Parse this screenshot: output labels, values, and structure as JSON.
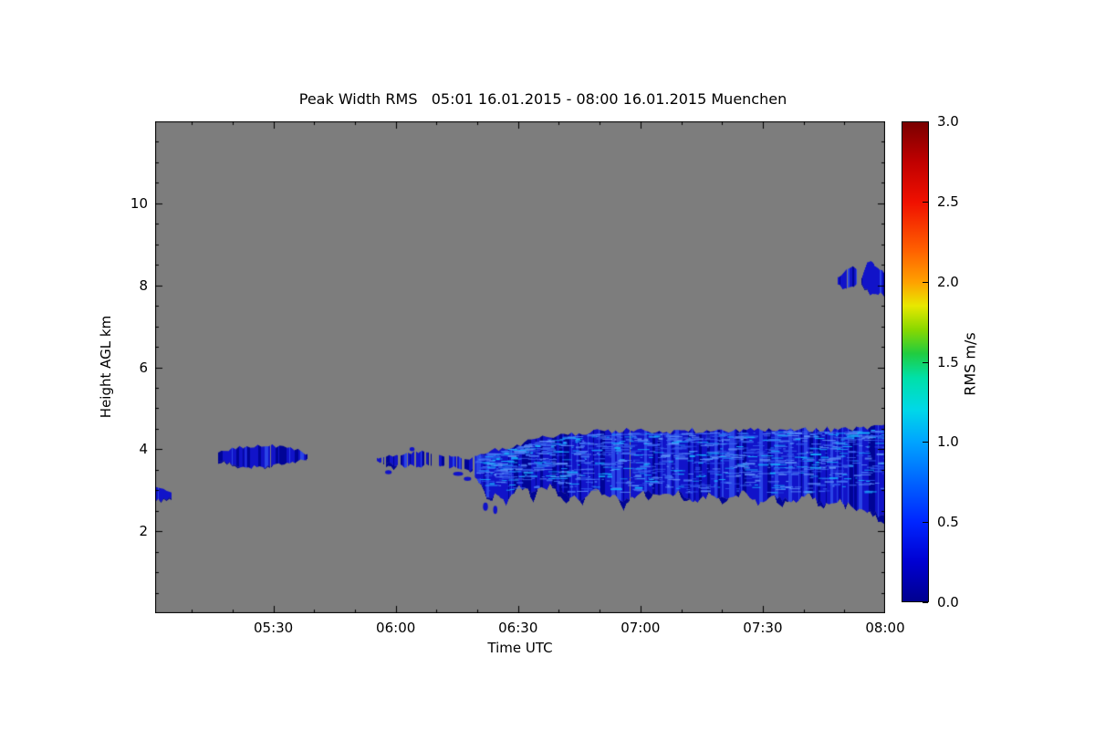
{
  "chart_data": {
    "type": "heatmap",
    "title": "Peak Width RMS   05:01 16.01.2015 - 08:00 16.01.2015 Muenchen",
    "xlabel": "Time UTC",
    "ylabel": "Height AGL km",
    "t_max_minutes": 179,
    "h_max_km": 12,
    "x_ticks": [
      {
        "t": 29,
        "label": "05:30"
      },
      {
        "t": 59,
        "label": "06:00"
      },
      {
        "t": 89,
        "label": "06:30"
      },
      {
        "t": 119,
        "label": "07:00"
      },
      {
        "t": 149,
        "label": "07:30"
      },
      {
        "t": 179,
        "label": "08:00"
      }
    ],
    "x_minor_ticks": [
      9,
      19,
      39,
      49,
      69,
      79,
      99,
      109,
      129,
      139,
      159,
      169
    ],
    "y_ticks": [
      {
        "km": 2,
        "label": "2"
      },
      {
        "km": 4,
        "label": "4"
      },
      {
        "km": 6,
        "label": "6"
      },
      {
        "km": 8,
        "label": "8"
      },
      {
        "km": 10,
        "label": "10"
      }
    ],
    "y_minor_step": 0.5,
    "colorbar": {
      "label": "RMS m/s",
      "min": 0.0,
      "max": 3.0,
      "ticks": [
        {
          "v": 0.0,
          "label": "0.0"
        },
        {
          "v": 0.5,
          "label": "0.5"
        },
        {
          "v": 1.0,
          "label": "1.0"
        },
        {
          "v": 1.5,
          "label": "1.5"
        },
        {
          "v": 2.0,
          "label": "2.0"
        },
        {
          "v": 2.5,
          "label": "2.5"
        },
        {
          "v": 3.0,
          "label": "3.0"
        }
      ],
      "gradient": [
        {
          "v": 0.0,
          "c": "#00008f"
        },
        {
          "v": 0.25,
          "c": "#0000d2"
        },
        {
          "v": 0.5,
          "c": "#0026ff"
        },
        {
          "v": 0.75,
          "c": "#0064ff"
        },
        {
          "v": 1.0,
          "c": "#00a4ff"
        },
        {
          "v": 1.2,
          "c": "#00d8e8"
        },
        {
          "v": 1.4,
          "c": "#00e0a8"
        },
        {
          "v": 1.55,
          "c": "#20cc40"
        },
        {
          "v": 1.7,
          "c": "#88d800"
        },
        {
          "v": 1.85,
          "c": "#e8e800"
        },
        {
          "v": 2.0,
          "c": "#ffa000"
        },
        {
          "v": 2.2,
          "c": "#ff6000"
        },
        {
          "v": 2.5,
          "c": "#f01000"
        },
        {
          "v": 2.75,
          "c": "#c00000"
        },
        {
          "v": 3.0,
          "c": "#7a0000"
        }
      ]
    },
    "colors": {
      "background": "#7d7d7d",
      "blue_base": "#1113c9",
      "blue_light": "#2a44e6",
      "blue_dark": "#000496",
      "streaks": [
        "#2b50e8",
        "#3f6ef2",
        "#5b8ef8",
        "#15aefa"
      ]
    },
    "features": [
      {
        "name": "patch-left-edge",
        "t_range": [
          0,
          3.6
        ],
        "top_km": [
          [
            0,
            3.08
          ],
          [
            2,
            3.02
          ],
          [
            3.6,
            2.92
          ]
        ],
        "bottom_km": [
          [
            0,
            2.72
          ],
          [
            2,
            2.78
          ],
          [
            3.6,
            2.82
          ]
        ],
        "edge_noise_km": [
          0.05,
          0.05
        ],
        "gap_level": 0
      },
      {
        "name": "patch-0520-0539",
        "t_range": [
          15.5,
          37
        ],
        "top_km": [
          [
            15.5,
            3.9
          ],
          [
            18,
            4.0
          ],
          [
            22,
            4.06
          ],
          [
            27,
            4.09
          ],
          [
            31,
            4.05
          ],
          [
            35,
            3.97
          ],
          [
            37,
            3.9
          ]
        ],
        "bottom_km": [
          [
            15.5,
            3.74
          ],
          [
            18,
            3.63
          ],
          [
            22,
            3.57
          ],
          [
            27,
            3.58
          ],
          [
            31,
            3.62
          ],
          [
            35,
            3.7
          ],
          [
            37,
            3.78
          ]
        ],
        "edge_noise_km": [
          0.05,
          0.08
        ],
        "gap_level": 0.07
      },
      {
        "name": "patch-0555-0618",
        "t_range": [
          53.5,
          77.5
        ],
        "top_km": [
          [
            53.5,
            3.8
          ],
          [
            57,
            3.84
          ],
          [
            61,
            3.9
          ],
          [
            65,
            3.93
          ],
          [
            69,
            3.88
          ],
          [
            73,
            3.83
          ],
          [
            77.5,
            3.78
          ]
        ],
        "bottom_km": [
          [
            53.5,
            3.7
          ],
          [
            57,
            3.64
          ],
          [
            61,
            3.58
          ],
          [
            65,
            3.6
          ],
          [
            69,
            3.6
          ],
          [
            73,
            3.55
          ],
          [
            77.5,
            3.5
          ]
        ],
        "edge_noise_km": [
          0.05,
          0.1
        ],
        "gap_level": 0.3
      },
      {
        "name": "main-band-0620-0800",
        "t_range": [
          78.5,
          179
        ],
        "top_km": [
          [
            78.5,
            3.9
          ],
          [
            82,
            3.96
          ],
          [
            86,
            4.05
          ],
          [
            90,
            4.15
          ],
          [
            95,
            4.28
          ],
          [
            100,
            4.36
          ],
          [
            106,
            4.42
          ],
          [
            115,
            4.45
          ],
          [
            125,
            4.43
          ],
          [
            135,
            4.47
          ],
          [
            145,
            4.45
          ],
          [
            155,
            4.5
          ],
          [
            165,
            4.48
          ],
          [
            172,
            4.5
          ],
          [
            179,
            4.55
          ]
        ],
        "bottom_km": [
          [
            78.5,
            3.4
          ],
          [
            80,
            3.05
          ],
          [
            82,
            2.78
          ],
          [
            84,
            2.92
          ],
          [
            86,
            2.68
          ],
          [
            89,
            3.05
          ],
          [
            93,
            2.95
          ],
          [
            97,
            3.12
          ],
          [
            100,
            2.9
          ],
          [
            104,
            2.78
          ],
          [
            108,
            3.0
          ],
          [
            112,
            2.86
          ],
          [
            116,
            2.72
          ],
          [
            120,
            3.0
          ],
          [
            124,
            2.86
          ],
          [
            128,
            2.95
          ],
          [
            132,
            2.72
          ],
          [
            136,
            2.9
          ],
          [
            140,
            2.76
          ],
          [
            144,
            2.95
          ],
          [
            148,
            2.66
          ],
          [
            152,
            2.85
          ],
          [
            156,
            2.7
          ],
          [
            160,
            2.9
          ],
          [
            164,
            2.62
          ],
          [
            168,
            2.76
          ],
          [
            172,
            2.52
          ],
          [
            176,
            2.46
          ],
          [
            179,
            2.32
          ]
        ],
        "edge_noise_km": [
          0.07,
          0.32
        ],
        "gap_level": 0.02,
        "streak_count": 1300
      },
      {
        "name": "patch-0749-0800-8km",
        "t_range": [
          167.5,
          179
        ],
        "top_km": [
          [
            167.5,
            8.15
          ],
          [
            169.5,
            8.4
          ],
          [
            171,
            8.45
          ],
          [
            173.2,
            8.2
          ],
          [
            174.5,
            8.5
          ],
          [
            176,
            8.55
          ],
          [
            177.5,
            8.35
          ],
          [
            179,
            8.3
          ]
        ],
        "bottom_km": [
          [
            167.5,
            8.0
          ],
          [
            169.5,
            7.92
          ],
          [
            171,
            8.02
          ],
          [
            173.2,
            8.02
          ],
          [
            174.5,
            7.85
          ],
          [
            176,
            7.78
          ],
          [
            177.5,
            7.8
          ],
          [
            179,
            7.68
          ]
        ],
        "edge_noise_km": [
          0.06,
          0.07
        ],
        "gap_level": 0.05,
        "gaps": [
          [
            171.9,
            173.1
          ]
        ]
      }
    ],
    "dots": [
      {
        "t": 57.2,
        "h": 3.44,
        "rt": 0.8,
        "rh": 0.05
      },
      {
        "t": 63.0,
        "h": 4.0,
        "rt": 0.6,
        "rh": 0.05
      },
      {
        "t": 74.3,
        "h": 3.4,
        "rt": 1.2,
        "rh": 0.05
      },
      {
        "t": 76.6,
        "h": 3.28,
        "rt": 0.9,
        "rh": 0.05
      },
      {
        "t": 79.2,
        "h": 3.34,
        "rt": 0.8,
        "rh": 0.06
      },
      {
        "t": 81.0,
        "h": 2.6,
        "rt": 0.6,
        "rh": 0.1
      },
      {
        "t": 83.4,
        "h": 2.52,
        "rt": 0.5,
        "rh": 0.1
      }
    ]
  }
}
